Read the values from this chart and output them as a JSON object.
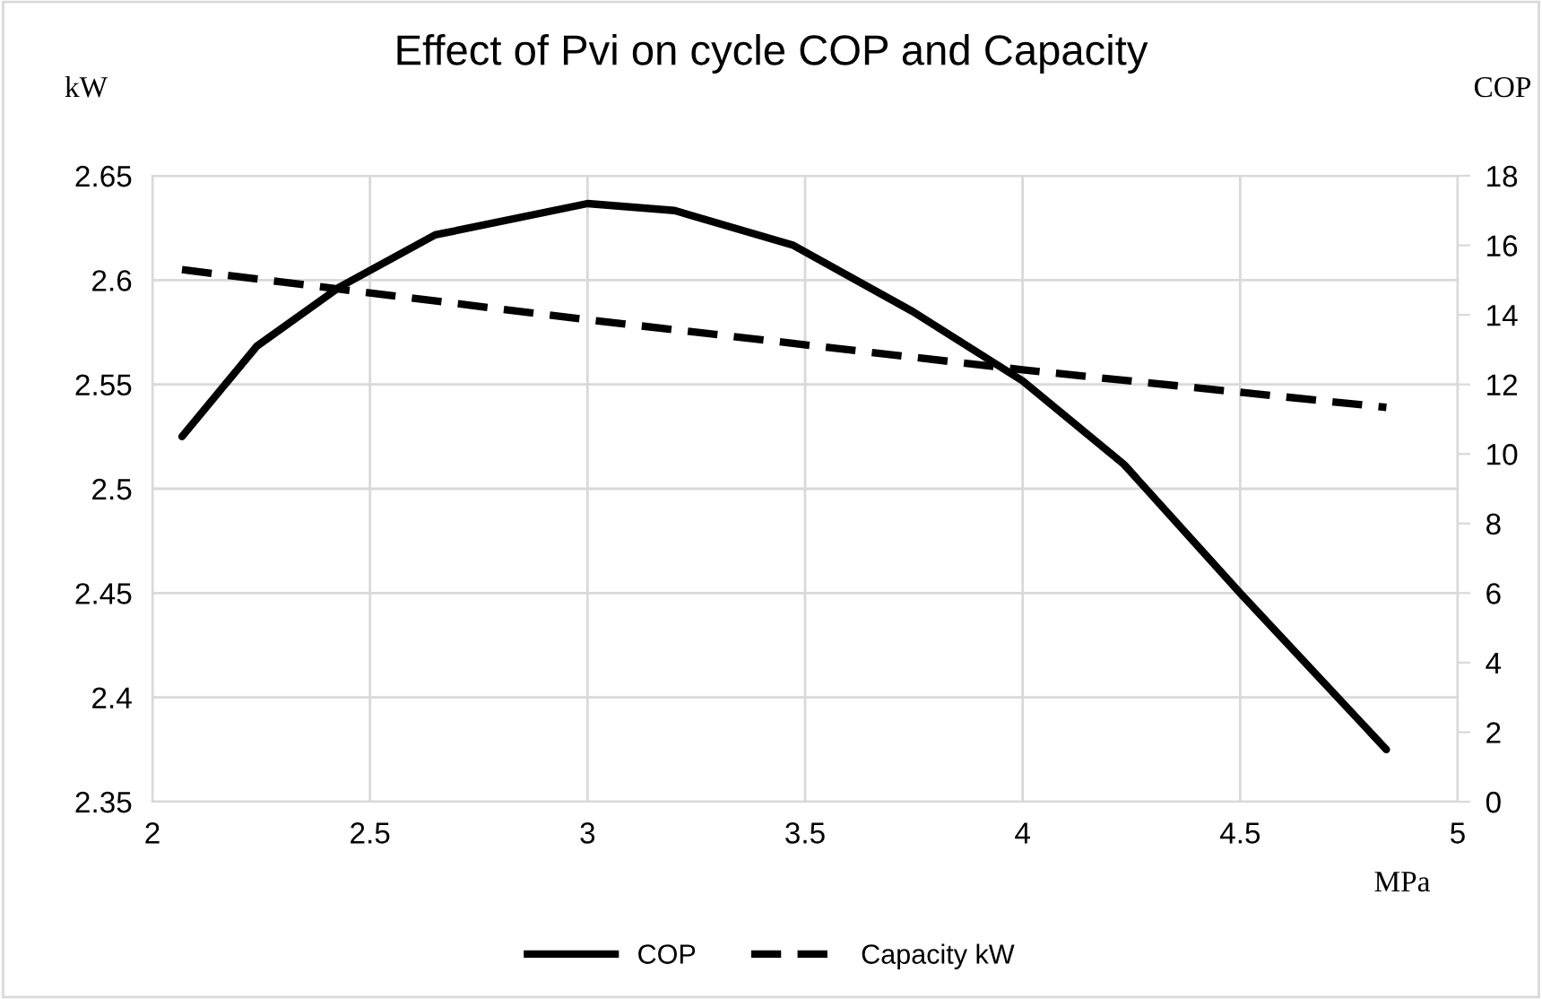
{
  "chart_data": {
    "type": "line",
    "title": "Effect of Pvi on cycle COP and Capacity",
    "xlabel": "MPa",
    "ylabel": "kW",
    "y2label": "COP",
    "series": [
      {
        "name": "COP",
        "color": "#000000",
        "axis": "y2",
        "line_style": "solid",
        "x": [
          2.068,
          2.24,
          2.43,
          2.65,
          3.0,
          3.2,
          3.473,
          3.747,
          4.0,
          4.233,
          4.5,
          4.836
        ],
        "values": [
          10.5,
          13.1,
          14.8,
          16.3,
          17.2,
          17.0,
          16.0,
          14.1,
          12.1,
          9.7,
          6.0,
          1.5
        ]
      },
      {
        "name": "Capacity kW",
        "color": "#000000",
        "line_style": "dashed",
        "x": [
          2.068,
          3.0,
          4.0,
          4.836
        ],
        "values": [
          2.605,
          2.581,
          2.557,
          2.539
        ]
      }
    ],
    "xlim": [
      2,
      5
    ],
    "xticks": [
      2,
      2.5,
      3,
      3.5,
      4,
      4.5,
      5
    ],
    "ylim": [
      2.35,
      2.65
    ],
    "yticks": [
      2.35,
      2.4,
      2.45,
      2.5,
      2.55,
      2.6,
      2.65
    ],
    "y2lim": [
      0,
      18
    ],
    "y2ticks": [
      0,
      2,
      4,
      6,
      8,
      10,
      12,
      14,
      16,
      18
    ],
    "grid": true,
    "legend": "bottom",
    "marker": "none"
  }
}
